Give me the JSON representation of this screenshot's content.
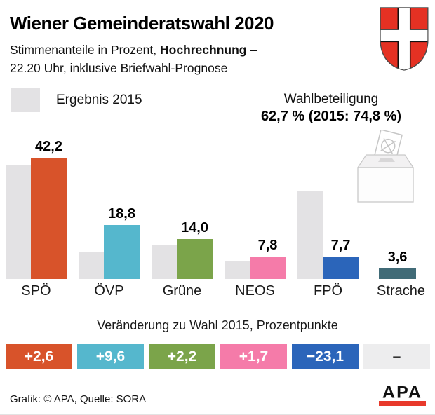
{
  "header": {
    "title": "Wiener Gemeinderatswahl 2020",
    "subtitle_prefix": "Stimmenanteile in Prozent, ",
    "subtitle_bold": "Hochrechnung",
    "subtitle_suffix": " –",
    "subtitle_line2": "22.20 Uhr, inklusive Briefwahl-Prognose"
  },
  "legend": {
    "label": "Ergebnis 2015",
    "swatch_color": "#e3e2e4"
  },
  "turnout": {
    "label": "Wahlbeteiligung",
    "value": "62,7 % (2015: 74,8 %)"
  },
  "chart_data": {
    "type": "bar",
    "title": "Wiener Gemeinderatswahl 2020 – Stimmenanteile in Prozent",
    "categories": [
      "SPÖ",
      "ÖVP",
      "Grüne",
      "NEOS",
      "FPÖ",
      "Strache"
    ],
    "series": [
      {
        "name": "Ergebnis 2015",
        "color": "#e3e2e4",
        "values": [
          39.6,
          9.2,
          11.8,
          6.2,
          30.8,
          null
        ]
      },
      {
        "name": "Hochrechnung 2020",
        "values": [
          42.2,
          18.8,
          14.0,
          7.8,
          7.7,
          3.6
        ],
        "display_labels": [
          "42,2",
          "18,8",
          "14,0",
          "7,8",
          "7,7",
          "3,6"
        ],
        "colors": [
          "#d8532a",
          "#55b7cd",
          "#7ba44a",
          "#f57ba9",
          "#2b65ba",
          "#416b77"
        ]
      }
    ],
    "xlabel": "",
    "ylabel": "",
    "ylim": [
      0,
      45
    ],
    "grid": false,
    "legend_position": "top-left"
  },
  "changes": {
    "caption": "Veränderung zu Wahl 2015, Prozentpunkte",
    "items": [
      {
        "label": "+2,6",
        "color": "#d8532a",
        "text_color": "#ffffff"
      },
      {
        "label": "+9,6",
        "color": "#55b7cd",
        "text_color": "#ffffff"
      },
      {
        "label": "+2,2",
        "color": "#7ba44a",
        "text_color": "#ffffff"
      },
      {
        "label": "+1,7",
        "color": "#f57ba9",
        "text_color": "#ffffff"
      },
      {
        "label": "−23,1",
        "color": "#2b65ba",
        "text_color": "#ffffff"
      },
      {
        "label": "–",
        "color": "#ededee",
        "text_color": "#333333"
      }
    ]
  },
  "footer": {
    "credit": "Grafik: © APA, Quelle: SORA",
    "logo_text": "APA",
    "logo_bar_color": "#e8392b"
  },
  "icons": {
    "coat_of_arms": "vienna-coat-of-arms-icon",
    "ballot_box": "ballot-box-icon",
    "shield_red": "#e53123"
  }
}
